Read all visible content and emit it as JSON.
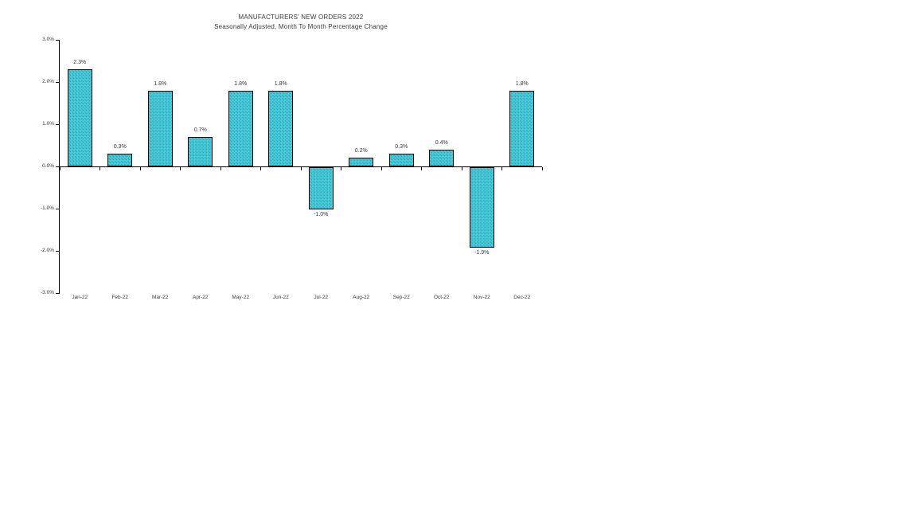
{
  "chart_data": {
    "type": "bar",
    "title": "MANUFACTURERS' NEW ORDERS 2022",
    "subtitle": "Seasonally Adjusted,  Month To Month Percentage Change",
    "categories": [
      "Jan-22",
      "Feb-22",
      "Mar-22",
      "Apr-22",
      "May-22",
      "Jun-22",
      "Jul-22",
      "Aug-22",
      "Sep-22",
      "Oct-22",
      "Nov-22",
      "Dec-22"
    ],
    "values": [
      2.3,
      0.3,
      1.8,
      0.7,
      1.8,
      1.8,
      -1.0,
      0.2,
      0.3,
      0.4,
      -1.9,
      1.8
    ],
    "data_labels": [
      "2.3%",
      "0.3%",
      "1.8%",
      "0.7%",
      "1.8%",
      "1.8%",
      "-1.0%",
      "0.2%",
      "0.3%",
      "0.4%",
      "-1.9%",
      "1.8%"
    ],
    "xlabel": "",
    "ylabel": "",
    "ylim": [
      -3.0,
      3.0
    ],
    "y_ticks": [
      "3.0%",
      "2.0%",
      "1.0%",
      "0.0%",
      "-1.0%",
      "-2.0%",
      "-3.0%"
    ],
    "grid": false,
    "legend": false,
    "colors": {
      "bar_fill": "#3ecfd8",
      "bar_dots": "#4e8fb4",
      "bar_border": "#000000",
      "text": "#3a3a3a"
    }
  }
}
